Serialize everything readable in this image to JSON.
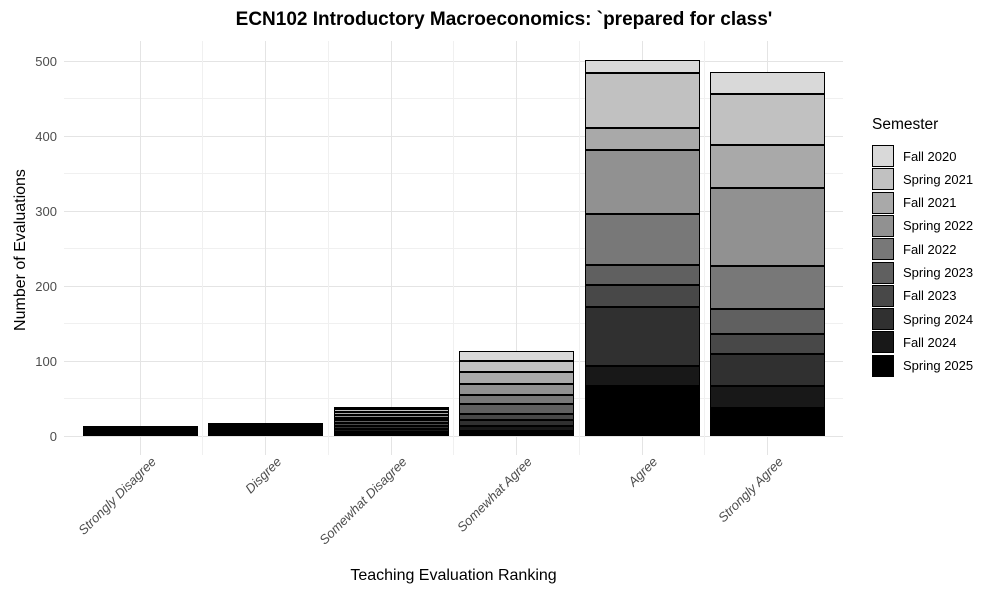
{
  "title": "ECN102 Introductory Macroeconomics: `prepared for class'",
  "axes": {
    "y_title": "Number of Evaluations",
    "x_title": "Teaching Evaluation Ranking",
    "y_major_ticks": [
      0,
      100,
      200,
      300,
      400,
      500
    ],
    "y_minor_ticks": [
      50,
      150,
      250,
      350,
      450
    ]
  },
  "legend": {
    "title": "Semester",
    "position": "right"
  },
  "chart_data": {
    "type": "bar",
    "stacked": true,
    "title": "ECN102 Introductory Macroeconomics: `prepared for class'",
    "xlabel": "Teaching Evaluation Ranking",
    "ylabel": "Number of Evaluations",
    "ylim": [
      0,
      500
    ],
    "grid": "horizontal major and minor light-gray lines on white background",
    "legend_position": "right",
    "legend_title": "Semester",
    "stack_order": "first series (Fall 2020) at top of each bar, last series (Spring 2025) at bottom",
    "bar_outline_color": "#000000",
    "categories": [
      "Strongly Disagree",
      "Disgree",
      "Somewhat Disagree",
      "Somewhat Agree",
      "Agree",
      "Strongly Agree"
    ],
    "series": [
      {
        "name": "Fall 2020",
        "color": "#d9d9d9",
        "values": [
          1,
          1,
          3,
          13,
          17,
          30
        ]
      },
      {
        "name": "Spring 2021",
        "color": "#c1c1c1",
        "values": [
          1,
          1,
          4,
          14,
          73,
          68
        ]
      },
      {
        "name": "Fall 2021",
        "color": "#a9a9a9",
        "values": [
          1,
          2,
          4,
          16,
          30,
          57
        ]
      },
      {
        "name": "Spring 2022",
        "color": "#919191",
        "values": [
          1,
          1,
          4,
          15,
          85,
          104
        ]
      },
      {
        "name": "Fall 2022",
        "color": "#787878",
        "values": [
          1,
          1,
          3,
          12,
          68,
          58
        ]
      },
      {
        "name": "Spring 2023",
        "color": "#606060",
        "values": [
          1,
          2,
          4,
          14,
          27,
          33
        ]
      },
      {
        "name": "Fall 2023",
        "color": "#484848",
        "values": [
          1,
          2,
          3,
          8,
          29,
          26
        ]
      },
      {
        "name": "Spring 2024",
        "color": "#303030",
        "values": [
          2,
          2,
          4,
          8,
          79,
          43
        ]
      },
      {
        "name": "Fall 2024",
        "color": "#181818",
        "values": [
          2,
          2,
          4,
          6,
          26,
          30
        ]
      },
      {
        "name": "Spring 2025",
        "color": "#000000",
        "values": [
          3,
          4,
          6,
          7,
          67,
          37
        ]
      }
    ],
    "category_totals": [
      14,
      18,
      39,
      113,
      501,
      486
    ]
  },
  "colors": {
    "background": "#ffffff",
    "tick_label": "#4d4d4d",
    "grid_major": "#e4e4e4",
    "grid_minor": "#f0f0f0",
    "text": "#000000"
  }
}
